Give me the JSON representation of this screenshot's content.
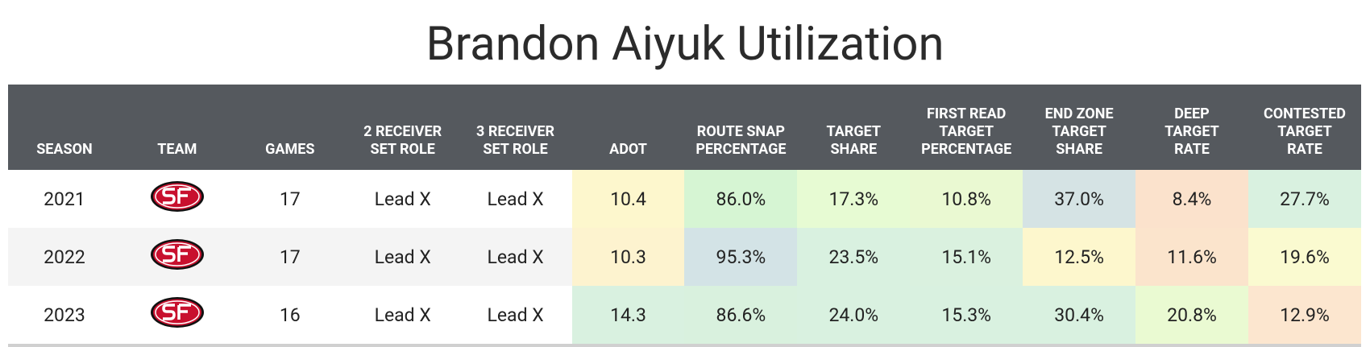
{
  "title": "Brandon Aiyuk Utilization",
  "table": {
    "columns": [
      "SEASON",
      "TEAM",
      "GAMES",
      "2 RECEIVER\nSET ROLE",
      "3 RECEIVER\nSET ROLE",
      "ADOT",
      "ROUTE SNAP\nPERCENTAGE",
      "TARGET\nSHARE",
      "FIRST READ\nTARGET\nPERCENTAGE",
      "END ZONE\nTARGET\nSHARE",
      "DEEP\nTARGET\nRATE",
      "CONTESTED\nTARGET\nRATE"
    ],
    "rows": [
      [
        "2021",
        null,
        "17",
        "Lead X",
        "Lead X",
        "10.4",
        "86.0%",
        "17.3%",
        "10.8%",
        "37.0%",
        "8.4%",
        "27.7%"
      ],
      [
        "2022",
        null,
        "17",
        "Lead X",
        "Lead X",
        "10.3",
        "95.3%",
        "23.5%",
        "15.1%",
        "12.5%",
        "11.6%",
        "19.6%"
      ],
      [
        "2023",
        null,
        "16",
        "Lead X",
        "Lead X",
        "14.3",
        "86.6%",
        "24.0%",
        "15.3%",
        "30.4%",
        "20.8%",
        "12.9%"
      ]
    ],
    "cell_colors": [
      [
        null,
        null,
        null,
        null,
        null,
        "#fdf7cd",
        "#d6f5d3",
        "#e7fbd3",
        "#eaf9d2",
        "#d5e3e4",
        "#fbe2cc",
        "#d9f1e0"
      ],
      [
        null,
        null,
        null,
        null,
        null,
        "#fdf3cf",
        "#d3e3e6",
        "#d9f1e0",
        "#daf1df",
        "#fdf7cd",
        "#fbe4cc",
        "#fafad0"
      ],
      [
        null,
        null,
        null,
        null,
        null,
        "#d9f1e0",
        "#d9f1de",
        "#d9f1e0",
        "#d9f1e0",
        "#d9f1e0",
        "#eafad2",
        "#fce6cf"
      ]
    ]
  }
}
